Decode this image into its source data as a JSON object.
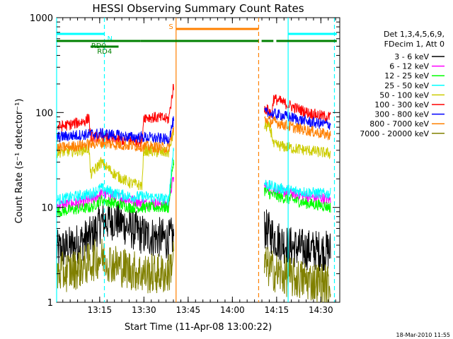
{
  "chart_data": {
    "type": "line",
    "title": "HESSI Observing Summary Count Rates",
    "xlabel": "Start Time (11-Apr-08 13:00:22)",
    "ylabel": "Count Rate (s⁻¹ detector⁻¹)",
    "x_unit": "minutes after 13:00:22",
    "xlim": [
      0,
      96
    ],
    "ylim": [
      1,
      1000
    ],
    "yscale": "log",
    "x_ticks": [
      {
        "x": 14.6,
        "label": "13:15"
      },
      {
        "x": 29.6,
        "label": "13:30"
      },
      {
        "x": 44.6,
        "label": "13:45"
      },
      {
        "x": 59.6,
        "label": "14:00"
      },
      {
        "x": 74.6,
        "label": "14:15"
      },
      {
        "x": 89.6,
        "label": "14:30"
      }
    ],
    "y_ticks": [
      {
        "y": 1,
        "label": "1"
      },
      {
        "y": 10,
        "label": "10"
      },
      {
        "y": 100,
        "label": "100"
      },
      {
        "y": 1000,
        "label": "1000"
      }
    ],
    "legend": {
      "placement": "right",
      "header": [
        "Det 1,3,4,5,6,9,",
        "FDecim 1, Att 0"
      ]
    },
    "gaps": [
      [
        39.8,
        70.4
      ]
    ],
    "series": [
      {
        "name": "3 - 6 keV",
        "color": "#000000",
        "points": [
          [
            0,
            3.5
          ],
          [
            6,
            4
          ],
          [
            12,
            5
          ],
          [
            15,
            7
          ],
          [
            20,
            7.5
          ],
          [
            25,
            6
          ],
          [
            30,
            5
          ],
          [
            35,
            4.8
          ],
          [
            38,
            4.5
          ],
          [
            39.5,
            5
          ],
          [
            70.5,
            6
          ],
          [
            72,
            5.5
          ],
          [
            75,
            4.5
          ],
          [
            80,
            3.8
          ],
          [
            85,
            3.6
          ],
          [
            90,
            3.5
          ],
          [
            93,
            3.5
          ]
        ]
      },
      {
        "name": "6 - 12 keV",
        "color": "#ff00ff",
        "points": [
          [
            0,
            10.5
          ],
          [
            6,
            11
          ],
          [
            12,
            12
          ],
          [
            15,
            14
          ],
          [
            20,
            13
          ],
          [
            25,
            12
          ],
          [
            30,
            11
          ],
          [
            35,
            11
          ],
          [
            38,
            11
          ],
          [
            39.5,
            20
          ],
          [
            70.5,
            17
          ],
          [
            72,
            16
          ],
          [
            75,
            15
          ],
          [
            80,
            14
          ],
          [
            85,
            13
          ],
          [
            90,
            12.5
          ],
          [
            93,
            12
          ]
        ]
      },
      {
        "name": "12 - 25 keV",
        "color": "#00ff00",
        "points": [
          [
            0,
            9
          ],
          [
            6,
            9.5
          ],
          [
            12,
            10
          ],
          [
            15,
            12
          ],
          [
            20,
            11
          ],
          [
            25,
            10
          ],
          [
            30,
            10
          ],
          [
            35,
            10
          ],
          [
            38,
            10
          ],
          [
            39.5,
            30
          ],
          [
            70.5,
            15
          ],
          [
            72,
            14
          ],
          [
            75,
            13
          ],
          [
            80,
            12
          ],
          [
            85,
            11
          ],
          [
            90,
            10.5
          ],
          [
            93,
            10
          ]
        ]
      },
      {
        "name": "25 - 50 keV",
        "color": "#00ffff",
        "points": [
          [
            0,
            12
          ],
          [
            6,
            13
          ],
          [
            12,
            14
          ],
          [
            15,
            16
          ],
          [
            20,
            14
          ],
          [
            25,
            13
          ],
          [
            30,
            13
          ],
          [
            35,
            12.5
          ],
          [
            38,
            12
          ],
          [
            39.5,
            40
          ],
          [
            70.5,
            18
          ],
          [
            72,
            17
          ],
          [
            75,
            16
          ],
          [
            80,
            15
          ],
          [
            85,
            14.5
          ],
          [
            90,
            14
          ],
          [
            93,
            14
          ]
        ]
      },
      {
        "name": "50 - 100 keV",
        "color": "#cccc00",
        "points": [
          [
            0,
            38
          ],
          [
            8,
            40
          ],
          [
            11,
            42
          ],
          [
            11.5,
            22
          ],
          [
            15,
            30
          ],
          [
            20,
            22
          ],
          [
            25,
            18
          ],
          [
            29,
            17
          ],
          [
            29.5,
            40
          ],
          [
            35,
            38
          ],
          [
            38,
            38
          ],
          [
            39.5,
            60
          ],
          [
            70.5,
            72
          ],
          [
            72,
            70
          ],
          [
            73,
            60
          ],
          [
            73.5,
            45
          ],
          [
            75,
            45
          ],
          [
            80,
            42
          ],
          [
            85,
            40
          ],
          [
            90,
            38
          ],
          [
            93,
            37
          ]
        ]
      },
      {
        "name": "100 - 300 keV",
        "color": "#ff0000",
        "points": [
          [
            0,
            70
          ],
          [
            5,
            75
          ],
          [
            10,
            82
          ],
          [
            11,
            90
          ],
          [
            11.5,
            55
          ],
          [
            15,
            55
          ],
          [
            20,
            52
          ],
          [
            25,
            50
          ],
          [
            29,
            50
          ],
          [
            29.5,
            90
          ],
          [
            35,
            88
          ],
          [
            38,
            85
          ],
          [
            39.5,
            180
          ],
          [
            70.5,
            110
          ],
          [
            72,
            105
          ],
          [
            73,
            95
          ],
          [
            73.5,
            140
          ],
          [
            75,
            135
          ],
          [
            80,
            115
          ],
          [
            85,
            100
          ],
          [
            90,
            92
          ],
          [
            93,
            90
          ]
        ]
      },
      {
        "name": "300 - 800 keV",
        "color": "#0000ff",
        "points": [
          [
            0,
            55
          ],
          [
            8,
            58
          ],
          [
            15,
            60
          ],
          [
            20,
            58
          ],
          [
            25,
            55
          ],
          [
            30,
            55
          ],
          [
            35,
            53
          ],
          [
            38,
            52
          ],
          [
            39.5,
            80
          ],
          [
            70.5,
            100
          ],
          [
            72,
            98
          ],
          [
            75,
            95
          ],
          [
            80,
            88
          ],
          [
            85,
            80
          ],
          [
            90,
            76
          ],
          [
            93,
            75
          ]
        ]
      },
      {
        "name": "800 - 7000 keV",
        "color": "#ff8000",
        "points": [
          [
            0,
            42
          ],
          [
            8,
            45
          ],
          [
            15,
            48
          ],
          [
            20,
            46
          ],
          [
            25,
            45
          ],
          [
            30,
            44
          ],
          [
            35,
            43
          ],
          [
            38,
            42
          ],
          [
            39.5,
            65
          ],
          [
            70.5,
            85
          ],
          [
            72,
            82
          ],
          [
            75,
            78
          ],
          [
            80,
            70
          ],
          [
            85,
            65
          ],
          [
            90,
            60
          ],
          [
            93,
            58
          ]
        ]
      },
      {
        "name": "7000 - 20000 keV",
        "color": "#808000",
        "points": [
          [
            0,
            2
          ],
          [
            6,
            2.2
          ],
          [
            10,
            2.5
          ],
          [
            15,
            3
          ],
          [
            20,
            2.5
          ],
          [
            25,
            2.2
          ],
          [
            30,
            2
          ],
          [
            35,
            2
          ],
          [
            38,
            2
          ],
          [
            39.5,
            3
          ],
          [
            70.5,
            2.5
          ],
          [
            72,
            2.3
          ],
          [
            75,
            2
          ],
          [
            80,
            1.8
          ],
          [
            85,
            1.7
          ],
          [
            90,
            1.6
          ],
          [
            93,
            1.5
          ]
        ]
      }
    ],
    "markers": {
      "vertical_lines": [
        {
          "x": 0,
          "color": "#00ffff",
          "style": "solid"
        },
        {
          "x": 16.2,
          "color": "#00ffff",
          "style": "dashed"
        },
        {
          "x": 40.5,
          "color": "#ff8000",
          "style": "solid"
        },
        {
          "x": 68.5,
          "color": "#ff8000",
          "style": "dashed"
        },
        {
          "x": 78.5,
          "color": "#00ffff",
          "style": "solid"
        },
        {
          "x": 94.2,
          "color": "#00ffff",
          "style": "dashed"
        }
      ],
      "flag_bars": [
        {
          "label": "N",
          "color": "#00ffff",
          "x0": 0,
          "x1": 16.2,
          "y": 48
        },
        {
          "label": "",
          "color": "#00ffff",
          "x0": 78.5,
          "x1": 95,
          "y": 48
        },
        {
          "label": "S",
          "color": "#ff8000",
          "x0": 40.5,
          "x1": 68.5,
          "y": 41
        },
        {
          "label": "RD0",
          "color": "#008000",
          "x0": 0,
          "x1": 28.5,
          "y": 58
        },
        {
          "label": "",
          "color": "#008000",
          "x0": 28.5,
          "x1": 68.5,
          "y": 58
        },
        {
          "label": "",
          "color": "#008000",
          "x0": 69.5,
          "x1": 73.5,
          "y": 58
        },
        {
          "label": "",
          "color": "#008000",
          "x0": 74.5,
          "x1": 95,
          "y": 58
        },
        {
          "label": "RD4",
          "color": "#008000",
          "x0": 11.5,
          "x1": 21,
          "y": 66
        }
      ]
    }
  },
  "footer_timestamp": "18-Mar-2010 11:55"
}
